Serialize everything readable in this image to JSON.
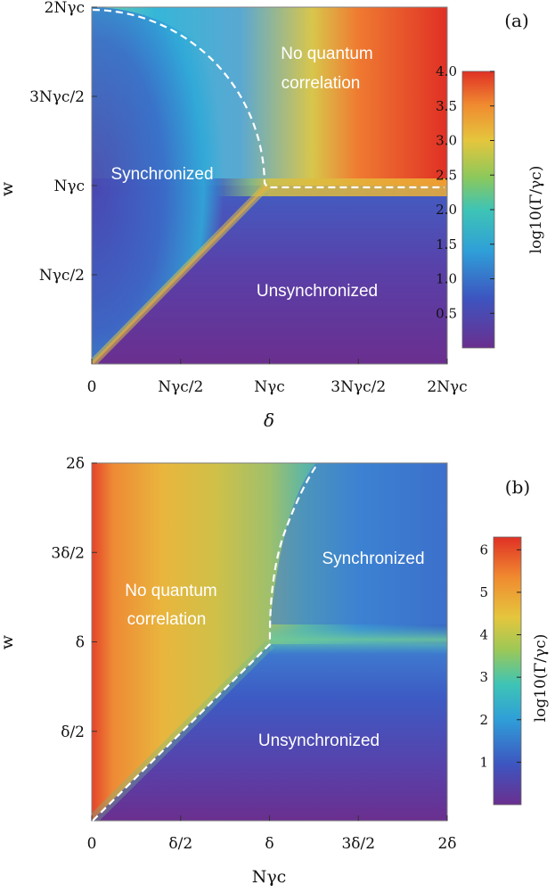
{
  "chart_data": [
    {
      "type": "heatmap",
      "panel_label": "(a)",
      "title": "",
      "xlabel": "δ",
      "ylabel": "w",
      "x_ticks": [
        "0",
        "Nγc/2",
        "Nγc",
        "3Nγc/2",
        "2Nγc"
      ],
      "y_ticks": [
        "Nγc/2",
        "Nγc",
        "3Nγc/2",
        "2Nγc"
      ],
      "colorbar": {
        "label": "log10(Γ/γc)",
        "range": [
          0,
          4.0
        ],
        "ticks": [
          "0.5",
          "1.0",
          "1.5",
          "2.0",
          "2.5",
          "3.0",
          "3.5",
          "4.0"
        ]
      },
      "regions": [
        {
          "name": "synchronized",
          "label": "Synchronized"
        },
        {
          "name": "no-quantum-correlation",
          "label": [
            "No quantum",
            "correlation"
          ]
        },
        {
          "name": "unsynchronized",
          "label": "Unsynchronized"
        }
      ],
      "boundaries": "dashed white: arc from (0, 2Nγc) to (Nγc, Nγc), then horizontal at w = Nγc"
    },
    {
      "type": "heatmap",
      "panel_label": "(b)",
      "title": "",
      "xlabel": "Nγc",
      "ylabel": "w",
      "x_ticks": [
        "0",
        "δ/2",
        "δ",
        "3δ/2",
        "2δ"
      ],
      "y_ticks": [
        "δ/2",
        "δ",
        "3δ/2",
        "2δ"
      ],
      "colorbar": {
        "label": "log10(Γ/γc)",
        "range": [
          0,
          6.3
        ],
        "ticks": [
          "1",
          "2",
          "3",
          "4",
          "5",
          "6"
        ]
      },
      "regions": [
        {
          "name": "no-quantum-correlation",
          "label": [
            "No quantum",
            "correlation"
          ]
        },
        {
          "name": "synchronized",
          "label": "Synchronized"
        },
        {
          "name": "unsynchronized",
          "label": "Unsynchronized"
        }
      ],
      "boundaries": "dashed white: diagonal from (0, 0) to (δ, δ), then curve up to (1.3δ, 2δ)"
    }
  ]
}
